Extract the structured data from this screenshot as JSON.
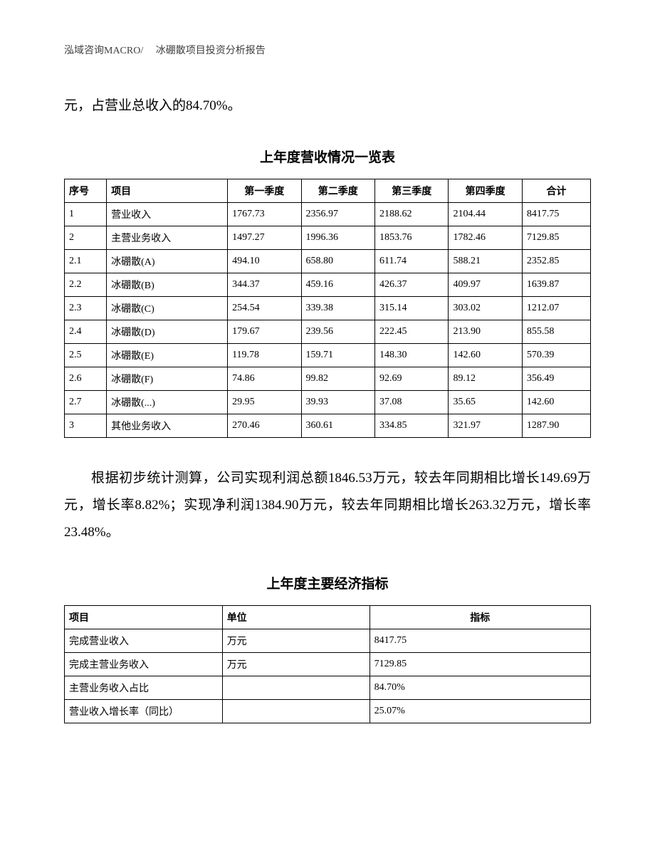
{
  "header": "泓域咨询MACRO/　 冰硼散项目投资分析报告",
  "intro": "元，占营业总收入的84.70%。",
  "table1": {
    "title": "上年度营收情况一览表",
    "columns": [
      "序号",
      "项目",
      "第一季度",
      "第二季度",
      "第三季度",
      "第四季度",
      "合计"
    ],
    "col_widths_pct": [
      8,
      23,
      14,
      14,
      14,
      14,
      13
    ],
    "header_bold": true,
    "header_align": [
      "left",
      "left",
      "center",
      "center",
      "center",
      "center",
      "center"
    ],
    "rows": [
      [
        "1",
        "营业收入",
        "1767.73",
        "2356.97",
        "2188.62",
        "2104.44",
        "8417.75"
      ],
      [
        "2",
        "主营业务收入",
        "1497.27",
        "1996.36",
        "1853.76",
        "1782.46",
        "7129.85"
      ],
      [
        "2.1",
        "冰硼散(A)",
        "494.10",
        "658.80",
        "611.74",
        "588.21",
        "2352.85"
      ],
      [
        "2.2",
        "冰硼散(B)",
        "344.37",
        "459.16",
        "426.37",
        "409.97",
        "1639.87"
      ],
      [
        "2.3",
        "冰硼散(C)",
        "254.54",
        "339.38",
        "315.14",
        "303.02",
        "1212.07"
      ],
      [
        "2.4",
        "冰硼散(D)",
        "179.67",
        "239.56",
        "222.45",
        "213.90",
        "855.58"
      ],
      [
        "2.5",
        "冰硼散(E)",
        "119.78",
        "159.71",
        "148.30",
        "142.60",
        "570.39"
      ],
      [
        "2.6",
        "冰硼散(F)",
        "74.86",
        "99.82",
        "92.69",
        "89.12",
        "356.49"
      ],
      [
        "2.7",
        "冰硼散(...)",
        "29.95",
        "39.93",
        "37.08",
        "35.65",
        "142.60"
      ],
      [
        "3",
        "其他业务收入",
        "270.46",
        "360.61",
        "334.85",
        "321.97",
        "1287.90"
      ]
    ],
    "border_color": "#000000",
    "font_size": 14
  },
  "para2": "根据初步统计测算，公司实现利润总额1846.53万元，较去年同期相比增长149.69万元，增长率8.82%；实现净利润1384.90万元，较去年同期相比增长263.32万元，增长率23.48%。",
  "table2": {
    "title": "上年度主要经济指标",
    "columns": [
      "项目",
      "单位",
      "指标"
    ],
    "col_widths_pct": [
      30,
      28,
      42
    ],
    "header_bold": true,
    "header_align": [
      "left",
      "left",
      "center"
    ],
    "rows": [
      [
        "完成营业收入",
        "万元",
        "8417.75"
      ],
      [
        "完成主营业务收入",
        "万元",
        "7129.85"
      ],
      [
        "主营业务收入占比",
        "",
        "84.70%"
      ],
      [
        "营业收入增长率（同比）",
        "",
        "25.07%"
      ]
    ],
    "border_color": "#000000",
    "font_size": 14
  },
  "style": {
    "page_bg": "#ffffff",
    "text_color": "#000000",
    "header_color": "#404040",
    "body_font_size": 19,
    "header_font_size": 14,
    "title_font_size": 19,
    "line_height": 2.0
  }
}
